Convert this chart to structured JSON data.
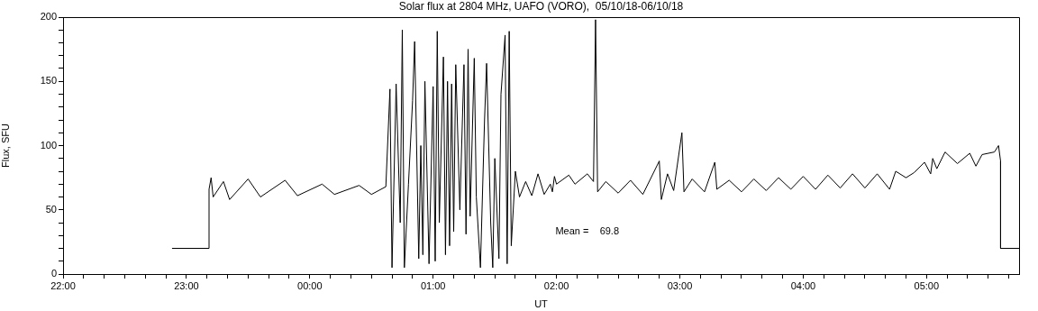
{
  "chart_data": {
    "type": "line",
    "title": "Solar flux at 2804 MHz, UAFO (VORO),  05/10/18-06/10/18",
    "xlabel": "UT",
    "ylabel": "Flux, SFU",
    "annotations": [
      "Mean =    69.8"
    ],
    "xlim": [
      "--10-05T22:00",
      "--10-06T05:45"
    ],
    "xticks": [
      {
        "value": "--10-05T22:00",
        "label": "22:00"
      },
      {
        "value": "--10-05T22:10",
        "label": null
      },
      {
        "value": "--10-05T22:20",
        "label": null
      },
      {
        "value": "--10-05T22:30",
        "label": null
      },
      {
        "value": "--10-05T22:40",
        "label": null
      },
      {
        "value": "--10-05T22:50",
        "label": null
      },
      {
        "value": "--10-05T23:00",
        "label": "23:00"
      },
      {
        "value": "--10-05T23:10",
        "label": null
      },
      {
        "value": "--10-05T23:20",
        "label": null
      },
      {
        "value": "--10-05T23:30",
        "label": null
      },
      {
        "value": "--10-05T23:40",
        "label": null
      },
      {
        "value": "--10-05T23:50",
        "label": null
      },
      {
        "value": "--10-06T00:00",
        "label": "00:00"
      },
      {
        "value": "--10-06T00:10",
        "label": null
      },
      {
        "value": "--10-06T00:20",
        "label": null
      },
      {
        "value": "--10-06T00:30",
        "label": null
      },
      {
        "value": "--10-06T00:40",
        "label": null
      },
      {
        "value": "--10-06T00:50",
        "label": null
      },
      {
        "value": "--10-06T01:00",
        "label": "01:00"
      },
      {
        "value": "--10-06T01:10",
        "label": null
      },
      {
        "value": "--10-06T01:20",
        "label": null
      },
      {
        "value": "--10-06T01:30",
        "label": null
      },
      {
        "value": "--10-06T01:40",
        "label": null
      },
      {
        "value": "--10-06T01:50",
        "label": null
      },
      {
        "value": "--10-06T02:00",
        "label": "02:00"
      },
      {
        "value": "--10-06T02:10",
        "label": null
      },
      {
        "value": "--10-06T02:20",
        "label": null
      },
      {
        "value": "--10-06T02:30",
        "label": null
      },
      {
        "value": "--10-06T02:40",
        "label": null
      },
      {
        "value": "--10-06T02:50",
        "label": null
      },
      {
        "value": "--10-06T03:00",
        "label": "03:00"
      },
      {
        "value": "--10-06T03:10",
        "label": null
      },
      {
        "value": "--10-06T03:20",
        "label": null
      },
      {
        "value": "--10-06T03:30",
        "label": null
      },
      {
        "value": "--10-06T03:40",
        "label": null
      },
      {
        "value": "--10-06T03:50",
        "label": null
      },
      {
        "value": "--10-06T04:00",
        "label": "04:00"
      },
      {
        "value": "--10-06T04:10",
        "label": null
      },
      {
        "value": "--10-06T04:20",
        "label": null
      },
      {
        "value": "--10-06T04:30",
        "label": null
      },
      {
        "value": "--10-06T04:40",
        "label": null
      },
      {
        "value": "--10-06T04:50",
        "label": null
      },
      {
        "value": "--10-06T05:00",
        "label": "05:00"
      },
      {
        "value": "--10-06T05:10",
        "label": null
      },
      {
        "value": "--10-06T05:20",
        "label": null
      },
      {
        "value": "--10-06T05:30",
        "label": null
      },
      {
        "value": "--10-06T05:40",
        "label": null
      }
    ],
    "ylim": [
      0,
      200
    ],
    "yticks": [
      0,
      {
        "value": 10,
        "label": null
      },
      {
        "value": 20,
        "label": null
      },
      {
        "value": 30,
        "label": null
      },
      {
        "value": 40,
        "label": null
      },
      50,
      {
        "value": 60,
        "label": null
      },
      {
        "value": 70,
        "label": null
      },
      {
        "value": 80,
        "label": null
      },
      {
        "value": 90,
        "label": null
      },
      100,
      {
        "value": 110,
        "label": null
      },
      {
        "value": 120,
        "label": null
      },
      {
        "value": 130,
        "label": null
      },
      {
        "value": 140,
        "label": null
      },
      150,
      {
        "value": 160,
        "label": null
      },
      {
        "value": 170,
        "label": null
      },
      {
        "value": 180,
        "label": null
      },
      {
        "value": 190,
        "label": null
      },
      200
    ],
    "marker": "none",
    "line_style": "solid",
    "series": [
      {
        "color": "#000000",
        "x": [
          "--10-05T22:53",
          "--10-05T23:11",
          "--10-05T23:11",
          "--10-05T23:12",
          "--10-05T23:13",
          "--10-05T23:18",
          "--10-05T23:21",
          "--10-05T23:30",
          "--10-05T23:36",
          "--10-05T23:48",
          "--10-05T23:54",
          "--10-06T00:06",
          "--10-06T00:12",
          "--10-06T00:24",
          "--10-06T00:30",
          "--10-06T00:37",
          "--10-06T00:39",
          "--10-06T00:40",
          "--10-06T00:42",
          "--10-06T00:44",
          "--10-06T00:45",
          "--10-06T00:46",
          "--10-06T00:48",
          "--10-06T00:50",
          "--10-06T00:51",
          "--10-06T00:53",
          "--10-06T00:54",
          "--10-06T00:55",
          "--10-06T00:56",
          "--10-06T00:58",
          "--10-06T01:00",
          "--10-06T01:01",
          "--10-06T01:02",
          "--10-06T01:03",
          "--10-06T01:05",
          "--10-06T01:06",
          "--10-06T01:07",
          "--10-06T01:08",
          "--10-06T01:09",
          "--10-06T01:10",
          "--10-06T01:11",
          "--10-06T01:13",
          "--10-06T01:15",
          "--10-06T01:16",
          "--10-06T01:17",
          "--10-06T01:18",
          "--10-06T01:20",
          "--10-06T01:21",
          "--10-06T01:23",
          "--10-06T01:25",
          "--10-06T01:26",
          "--10-06T01:28",
          "--10-06T01:29",
          "--10-06T01:30",
          "--10-06T01:32",
          "--10-06T01:33",
          "--10-06T01:35",
          "--10-06T01:36",
          "--10-06T01:37",
          "--10-06T01:38",
          "--10-06T01:40",
          "--10-06T01:42",
          "--10-06T01:45",
          "--10-06T01:48",
          "--10-06T01:51",
          "--10-06T01:54",
          "--10-06T01:57",
          "--10-06T01:58",
          "--10-06T01:59",
          "--10-06T02:00",
          "--10-06T02:06",
          "--10-06T02:09",
          "--10-06T02:15",
          "--10-06T02:18",
          "--10-06T02:19",
          "--10-06T02:20",
          "--10-06T02:24",
          "--10-06T02:30",
          "--10-06T02:36",
          "--10-06T02:42",
          "--10-06T02:50",
          "--10-06T02:51",
          "--10-06T02:54",
          "--10-06T02:57",
          "--10-06T03:01",
          "--10-06T03:02",
          "--10-06T03:06",
          "--10-06T03:12",
          "--10-06T03:17",
          "--10-06T03:18",
          "--10-06T03:24",
          "--10-06T03:30",
          "--10-06T03:36",
          "--10-06T03:42",
          "--10-06T03:48",
          "--10-06T03:54",
          "--10-06T04:00",
          "--10-06T04:06",
          "--10-06T04:12",
          "--10-06T04:18",
          "--10-06T04:24",
          "--10-06T04:30",
          "--10-06T04:36",
          "--10-06T04:42",
          "--10-06T04:45",
          "--10-06T04:50",
          "--10-06T04:54",
          "--10-06T04:59",
          "--10-06T05:02",
          "--10-06T05:03",
          "--10-06T05:05",
          "--10-06T05:09",
          "--10-06T05:15",
          "--10-06T05:21",
          "--10-06T05:24",
          "--10-06T05:27",
          "--10-06T05:33",
          "--10-06T05:35",
          "--10-06T05:36",
          "--10-06T05:36",
          "--10-06T05:45"
        ],
        "values": [
          20,
          20,
          66,
          75,
          60,
          72,
          58,
          74,
          60,
          73,
          61,
          70,
          62,
          69,
          62,
          68,
          144,
          5,
          148,
          40,
          190,
          5,
          70,
          135,
          181,
          12,
          100,
          15,
          150,
          8,
          146,
          10,
          189,
          40,
          169,
          15,
          150,
          22,
          148,
          33,
          163,
          50,
          163,
          31,
          175,
          45,
          168,
          60,
          5,
          120,
          164,
          40,
          5,
          90,
          12,
          140,
          186,
          8,
          189,
          22,
          80,
          60,
          72,
          61,
          78,
          62,
          70,
          64,
          76,
          70,
          77,
          70,
          78,
          72,
          198,
          64,
          72,
          63,
          73,
          62,
          88,
          58,
          78,
          65,
          110,
          64,
          74,
          64,
          87,
          66,
          73,
          64,
          74,
          65,
          75,
          66,
          76,
          66,
          77,
          67,
          78,
          67,
          78,
          66,
          80,
          75,
          79,
          87,
          78,
          90,
          82,
          95,
          86,
          94,
          84,
          93,
          95,
          100,
          88,
          20,
          20
        ]
      }
    ]
  }
}
